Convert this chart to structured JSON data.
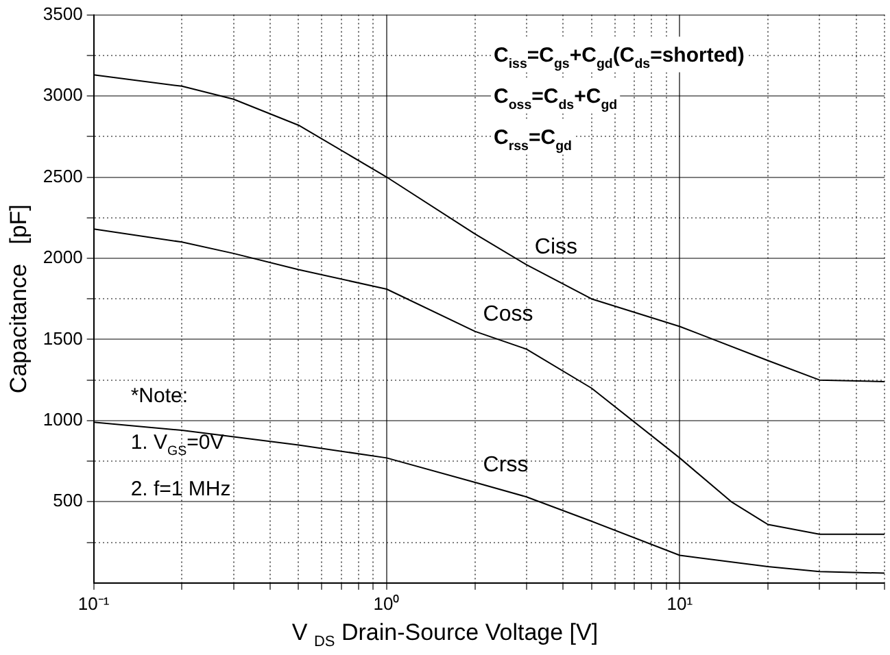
{
  "chart_data": {
    "type": "line",
    "xlabel": "V $_{DS}$ Drain-Source Voltage [V]",
    "ylabel": "Capacitance   [pF]",
    "log": "x",
    "xlim": [
      0.1,
      50
    ],
    "xticks": [
      {
        "value": 0.1,
        "label": "10⁻¹"
      },
      {
        "value": 0.2,
        "label": null
      },
      {
        "value": 0.3,
        "label": null
      },
      {
        "value": 0.4,
        "label": null
      },
      {
        "value": 0.5,
        "label": null
      },
      {
        "value": 0.6,
        "label": null
      },
      {
        "value": 0.7,
        "label": null
      },
      {
        "value": 0.8,
        "label": null
      },
      {
        "value": 0.9,
        "label": null
      },
      {
        "value": 1,
        "label": "10⁰"
      },
      {
        "value": 2,
        "label": null
      },
      {
        "value": 3,
        "label": null
      },
      {
        "value": 4,
        "label": null
      },
      {
        "value": 5,
        "label": null
      },
      {
        "value": 6,
        "label": null
      },
      {
        "value": 7,
        "label": null
      },
      {
        "value": 8,
        "label": null
      },
      {
        "value": 9,
        "label": null
      },
      {
        "value": 10,
        "label": "10¹"
      },
      {
        "value": 20,
        "label": null
      },
      {
        "value": 30,
        "label": null
      },
      {
        "value": 40,
        "label": null
      },
      {
        "value": 50,
        "label": null
      }
    ],
    "ylim": [
      0,
      3500
    ],
    "yticks": [
      {
        "value": 250,
        "label": null
      },
      500,
      {
        "value": 750,
        "label": null
      },
      1000,
      {
        "value": 1250,
        "label": null
      },
      1500,
      {
        "value": 1750,
        "label": null
      },
      2000,
      {
        "value": 2250,
        "label": null
      },
      2500,
      {
        "value": 2750,
        "label": null
      },
      3000,
      {
        "value": 3250,
        "label": null
      },
      3500
    ],
    "grid": true,
    "legend": false,
    "marker": "none",
    "line_style": "solid",
    "series": [
      {
        "name": "Ciss",
        "color": "#000000",
        "x": [
          0.1,
          0.2,
          0.3,
          0.5,
          1,
          2,
          3,
          5,
          10,
          20,
          30,
          50
        ],
        "values": [
          3130,
          3060,
          2980,
          2820,
          2500,
          2150,
          1960,
          1750,
          1580,
          1370,
          1250,
          1240
        ]
      },
      {
        "name": "Coss",
        "color": "#000000",
        "x": [
          0.1,
          0.2,
          0.3,
          0.5,
          1,
          2,
          3,
          5,
          10,
          15,
          20,
          30,
          50
        ],
        "values": [
          2180,
          2100,
          2030,
          1930,
          1810,
          1550,
          1440,
          1200,
          770,
          500,
          360,
          300,
          300
        ]
      },
      {
        "name": "Crss",
        "color": "#000000",
        "x": [
          0.1,
          0.2,
          0.3,
          0.5,
          1,
          2,
          3,
          5,
          10,
          20,
          30,
          50
        ],
        "values": [
          990,
          940,
          900,
          850,
          770,
          620,
          530,
          380,
          170,
          100,
          70,
          60
        ]
      }
    ],
    "annotations": [
      "C$_{iss}$=C$_{gs}$+C$_{gd}$(C$_{ds}$=shorted)",
      "C$_{oss}$=C$_{ds}$+C$_{gd}$",
      "C$_{rss}$=C$_{gd}$",
      "*Note:",
      "1. V$_{GS}$=0V",
      "2. f=1 MHz"
    ]
  }
}
